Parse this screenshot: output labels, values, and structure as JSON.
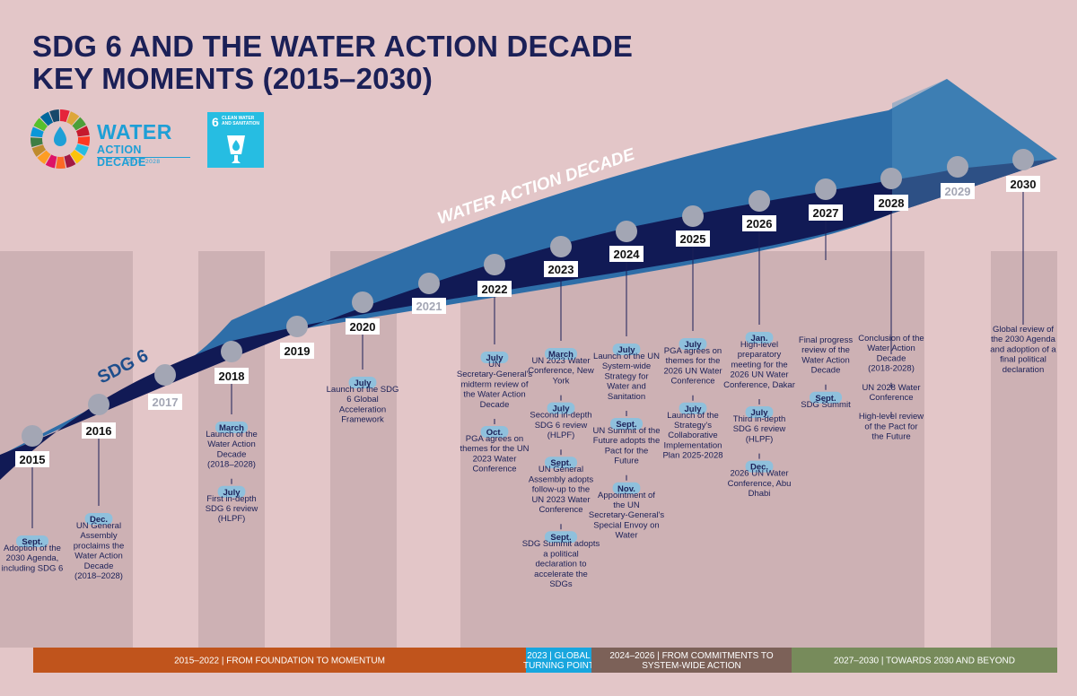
{
  "title": {
    "line1": "SDG 6 AND THE WATER ACTION DECADE",
    "line2": "KEY MOMENTS (2015–2030)"
  },
  "logos": {
    "wad_line1": "WATER",
    "wad_line2": "ACTION DECADE",
    "wad_years": "2018–2028",
    "sdg_number": "6",
    "sdg_text": "CLEAN WATER AND SANITATION"
  },
  "bands": {
    "outer_label": "WATER ACTION DECADE",
    "inner_label": "SDG 6"
  },
  "colors": {
    "background": "#e3c6c8",
    "band_outer": "#2e6ea8",
    "band_inner": "#111a55",
    "column": "#cdb1b4",
    "dot": "#a3a6b4",
    "tag": "#8fc0dc",
    "title": "#1b2057",
    "phase_1": "#c0541c",
    "phase_2": "#18a6de",
    "phase_3": "#7c6158",
    "phase_4": "#778b5b"
  },
  "years": [
    {
      "year": "2015",
      "muted": false,
      "events": [
        {
          "tag": "Sept.",
          "text": "Adoption of the 2030 Agenda, including SDG 6"
        }
      ]
    },
    {
      "year": "2016",
      "muted": false,
      "events": [
        {
          "tag": "Dec.",
          "text": "UN General Assembly proclaims the Water Action Decade (2018–2028)"
        }
      ]
    },
    {
      "year": "2017",
      "muted": true,
      "events": []
    },
    {
      "year": "2018",
      "muted": false,
      "events": [
        {
          "tag": "March",
          "text": "Launch of the Water Action Decade (2018–2028)"
        },
        {
          "tag": "July",
          "text": "First in-depth SDG 6 review (HLPF)"
        }
      ]
    },
    {
      "year": "2019",
      "muted": false,
      "events": []
    },
    {
      "year": "2020",
      "muted": false,
      "events": [
        {
          "tag": "July",
          "text": "Launch of the SDG 6 Global Acceleration Framework"
        }
      ]
    },
    {
      "year": "2021",
      "muted": true,
      "events": []
    },
    {
      "year": "2022",
      "muted": false,
      "events": [
        {
          "tag": "July",
          "text": "UN Secretary-General's midterm review of the Water Action Decade"
        },
        {
          "tag": "Oct.",
          "text": "PGA agrees on themes for the UN 2023 Water Conference"
        }
      ]
    },
    {
      "year": "2023",
      "muted": false,
      "events": [
        {
          "tag": "March",
          "text": "UN 2023 Water Conference, New York"
        },
        {
          "tag": "July",
          "text": "Second in-depth SDG 6 review (HLPF)"
        },
        {
          "tag": "Sept.",
          "text": "UN General Assembly adopts follow-up to the UN 2023 Water Conference"
        },
        {
          "tag": "Sept.",
          "text": "SDG Summit adopts a political declaration to accelerate the SDGs"
        }
      ]
    },
    {
      "year": "2024",
      "muted": false,
      "events": [
        {
          "tag": "July",
          "text": "Launch of the UN System-wide Strategy for Water and Sanitation"
        },
        {
          "tag": "Sept.",
          "text": "UN Summit of the Future adopts the Pact for the Future"
        },
        {
          "tag": "Nov.",
          "text": "Appointment of the UN Secretary-General's Special Envoy on Water"
        }
      ]
    },
    {
      "year": "2025",
      "muted": false,
      "events": [
        {
          "tag": "July",
          "text": "PGA agrees on themes for the 2026 UN Water Conference"
        },
        {
          "tag": "July",
          "text": "Launch of the Strategy's Collaborative Implementation Plan 2025-2028"
        }
      ]
    },
    {
      "year": "2026",
      "muted": false,
      "events": [
        {
          "tag": "Jan.",
          "text": "High-level preparatory meeting for the 2026 UN Water Conference, Dakar"
        },
        {
          "tag": "July",
          "text": "Third in-depth SDG 6 review (HLPF)"
        },
        {
          "tag": "Dec.",
          "text": "2026 UN Water Conference, Abu Dhabi"
        }
      ]
    },
    {
      "year": "2027",
      "muted": false,
      "events": [
        {
          "tag": "",
          "text": "Final progress review of the Water Action Decade"
        },
        {
          "tag": "Sept.",
          "text": "SDG Summit"
        }
      ]
    },
    {
      "year": "2028",
      "muted": false,
      "events": [
        {
          "tag": "",
          "text": "Conclusion of the Water Action Decade (2018-2028)"
        },
        {
          "tag": "",
          "text": "UN 2028 Water Conference"
        },
        {
          "tag": "",
          "text": "High-level review of the Pact for the Future"
        }
      ]
    },
    {
      "year": "2029",
      "muted": true,
      "events": []
    },
    {
      "year": "2030",
      "muted": false,
      "events": [
        {
          "tag": "",
          "text": "Global review of the 2030 Agenda and adoption of a final political declaration"
        }
      ]
    }
  ],
  "phases": [
    {
      "label": "2015–2022 | FROM FOUNDATION TO MOMENTUM"
    },
    {
      "label": "2023 | GLOBAL TURNING POINT"
    },
    {
      "label": "2024–2026 | FROM COMMITMENTS TO SYSTEM-WIDE ACTION"
    },
    {
      "label": "2027–2030 | TOWARDS 2030 AND BEYOND"
    }
  ]
}
